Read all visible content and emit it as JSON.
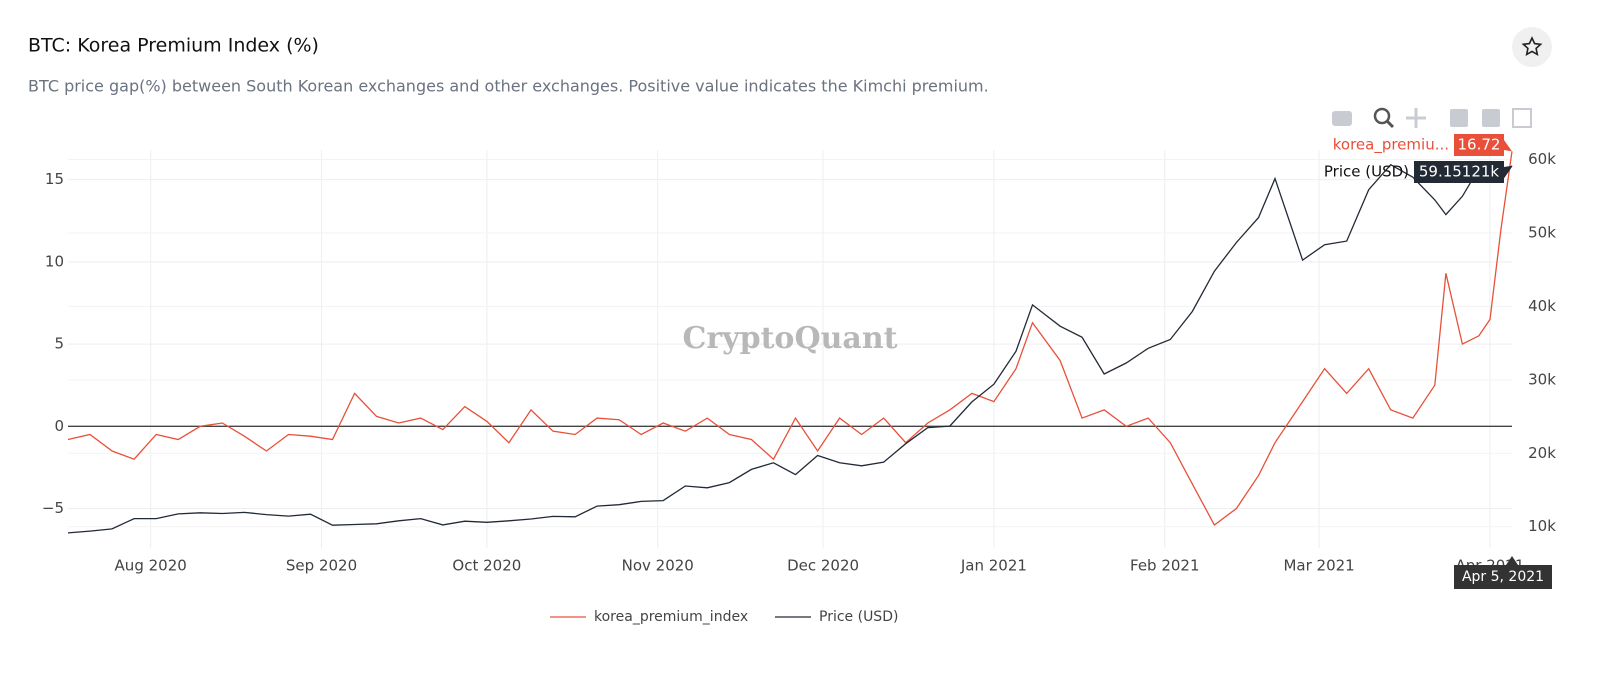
{
  "chart_data": {
    "type": "line",
    "title": "BTC: Korea Premium Index (%)",
    "subtitle": "BTC price gap(%) between South Korean exchanges and other exchanges. Positive value indicates the Kimchi premium.",
    "watermark": "CryptoQuant",
    "x": [
      "2020-07-17",
      "2020-07-21",
      "2020-07-25",
      "2020-07-29",
      "2020-08-02",
      "2020-08-06",
      "2020-08-10",
      "2020-08-14",
      "2020-08-18",
      "2020-08-22",
      "2020-08-26",
      "2020-08-30",
      "2020-09-03",
      "2020-09-07",
      "2020-09-11",
      "2020-09-15",
      "2020-09-19",
      "2020-09-23",
      "2020-09-27",
      "2020-10-01",
      "2020-10-05",
      "2020-10-09",
      "2020-10-13",
      "2020-10-17",
      "2020-10-21",
      "2020-10-25",
      "2020-10-29",
      "2020-11-02",
      "2020-11-06",
      "2020-11-10",
      "2020-11-14",
      "2020-11-18",
      "2020-11-22",
      "2020-11-26",
      "2020-11-30",
      "2020-12-04",
      "2020-12-08",
      "2020-12-12",
      "2020-12-16",
      "2020-12-20",
      "2020-12-24",
      "2020-12-28",
      "2021-01-01",
      "2021-01-05",
      "2021-01-08",
      "2021-01-13",
      "2021-01-17",
      "2021-01-21",
      "2021-01-25",
      "2021-01-29",
      "2021-02-02",
      "2021-02-06",
      "2021-02-10",
      "2021-02-14",
      "2021-02-18",
      "2021-02-21",
      "2021-02-26",
      "2021-03-02",
      "2021-03-06",
      "2021-03-10",
      "2021-03-14",
      "2021-03-18",
      "2021-03-22",
      "2021-03-24",
      "2021-03-27",
      "2021-03-30",
      "2021-04-01",
      "2021-04-03",
      "2021-04-05"
    ],
    "xlim": [
      "2020-07-17",
      "2021-04-05"
    ],
    "xticks": [
      {
        "value": "2020-08-01",
        "label": "Aug 2020"
      },
      {
        "value": "2020-09-01",
        "label": "Sep 2020"
      },
      {
        "value": "2020-10-01",
        "label": "Oct 2020"
      },
      {
        "value": "2020-11-01",
        "label": "Nov 2020"
      },
      {
        "value": "2020-12-01",
        "label": "Dec 2020"
      },
      {
        "value": "2021-01-01",
        "label": "Jan 2021"
      },
      {
        "value": "2021-02-01",
        "label": "Feb 2021"
      },
      {
        "value": "2021-03-01",
        "label": "Mar 2021"
      },
      {
        "value": "2021-04-01",
        "label": "Apr 2021"
      }
    ],
    "ylim": [
      -7.4,
      16.8
    ],
    "yticks": [
      {
        "value": -5,
        "label": "−5"
      },
      0,
      5,
      10,
      15
    ],
    "y2lim": [
      7100,
      61300
    ],
    "y2ticks": [
      {
        "value": 10000,
        "label": "10k"
      },
      {
        "value": 20000,
        "label": "20k"
      },
      {
        "value": 30000,
        "label": "30k"
      },
      {
        "value": 40000,
        "label": "40k"
      },
      {
        "value": 50000,
        "label": "50k"
      },
      {
        "value": 60000,
        "label": "60k"
      }
    ],
    "grid": true,
    "legend": "bottom",
    "series": [
      {
        "name": "korea_premium_index",
        "color": "#e8503a",
        "values": [
          -0.8,
          -0.5,
          -1.5,
          -2.0,
          -0.5,
          -0.8,
          0,
          0.2,
          -0.6,
          -1.5,
          -0.5,
          -0.6,
          -0.8,
          2.0,
          0.6,
          0.2,
          0.5,
          -0.2,
          1.2,
          0.3,
          -1.0,
          1.0,
          -0.3,
          -0.5,
          0.5,
          0.4,
          -0.5,
          0.2,
          -0.3,
          0.5,
          -0.5,
          -0.8,
          -2.0,
          0.5,
          -1.5,
          0.5,
          -0.5,
          0.5,
          -1.0,
          0.2,
          1.0,
          2.0,
          1.5,
          3.5,
          6.3,
          4.0,
          0.5,
          1.0,
          0.0,
          0.5,
          -1.0,
          -3.5,
          -6.0,
          -5.0,
          -3.0,
          -1.0,
          1.5,
          3.5,
          2.0,
          3.5,
          1.0,
          0.5,
          2.5,
          9.3,
          5.0,
          5.5,
          6.5,
          12.0,
          16.72
        ]
      },
      {
        "name": "Price (USD)",
        "color": "#222a35",
        "axis": "y2",
        "values": [
          9150,
          9400,
          9700,
          11100,
          11100,
          11750,
          11900,
          11800,
          11950,
          11650,
          11450,
          11700,
          10200,
          10300,
          10400,
          10800,
          11100,
          10250,
          10750,
          10600,
          10800,
          11050,
          11400,
          11350,
          12800,
          13000,
          13450,
          13550,
          15550,
          15300,
          16000,
          17800,
          18700,
          17100,
          19700,
          18700,
          18300,
          18800,
          21300,
          23500,
          23700,
          27000,
          29400,
          33900,
          40200,
          37300,
          35800,
          30800,
          32300,
          34300,
          35500,
          39300,
          44800,
          48700,
          52100,
          57400,
          46300,
          48400,
          48900,
          55900,
          59300,
          57600,
          54500,
          52500,
          55000,
          58800,
          58700,
          57000,
          59151.21
        ]
      }
    ],
    "hover": {
      "label": "Apr 5, 2021",
      "items": [
        {
          "name": "korea_premiu...",
          "value": 16.72
        },
        {
          "name": "Price (USD)",
          "value": 59151.21,
          "value_label": "59.15121k"
        }
      ]
    }
  }
}
